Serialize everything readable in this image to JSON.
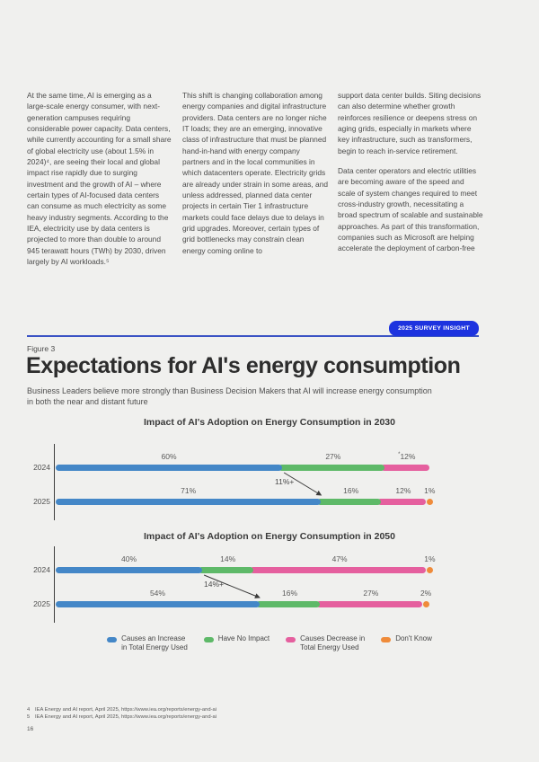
{
  "page": {
    "background": "#f0f0ee",
    "page_number": "16"
  },
  "body_text": {
    "col1": "At the same time, AI is emerging as a large-scale energy consumer, with next-generation campuses requiring considerable power capacity. Data centers, while currently accounting for a small share of global electricity use (about 1.5% in 2024)⁴, are seeing their local and global impact rise rapidly due to surging investment and the growth of AI – where certain types of AI-focused data centers can consume as much electricity as some heavy industry segments. According to the IEA, electricity use by data centers is projected to more than double to around 945 terawatt hours (TWh) by 2030, driven largely by AI workloads.⁵",
    "col2": "This shift is changing collaboration among energy companies and digital infrastructure providers. Data centers are no longer niche IT loads; they are an emerging, innovative class of infrastructure that must be planned hand-in-hand with energy company partners and in the local communities in which datacenters operate. Electricity grids are already under strain in some areas, and unless addressed, planned data center projects in certain Tier 1 infrastructure markets could face delays due to delays in grid upgrades. Moreover, certain types of grid bottlenecks may constrain clean energy coming online to",
    "col3_p1": "support data center builds. Siting decisions can also determine whether growth reinforces resilience or deepens stress on aging grids, especially in markets where key infrastructure, such as transformers, begin to reach in-service retirement.",
    "col3_p2": "Data center operators and electric utilities are becoming aware of the speed and scale of system changes required to meet cross-industry growth, necessitating a broad spectrum of scalable and sustainable approaches. As part of this transformation, companies such as Microsoft are helping accelerate the deployment of carbon-free"
  },
  "figure": {
    "badge": "2025 SURVEY INSIGHT",
    "badge_color": "#1d33df",
    "rule_color": "#3b53c4",
    "label": "Figure 3",
    "title": "Expectations for AI's energy consumption",
    "subtitle": "Business Leaders believe more strongly than Business Decision Makers that AI will increase energy consumption\nin both the near and distant future"
  },
  "chart_data": [
    {
      "type": "bar",
      "orientation": "horizontal-stacked",
      "title": "Impact of AI's Adoption on Energy Consumption in 2030",
      "categories": [
        "2024",
        "2025"
      ],
      "series": [
        {
          "name": "Causes an Increase in Total Energy Used",
          "color": "#4487c7",
          "values": [
            60,
            71
          ]
        },
        {
          "name": "Have No Impact",
          "color": "#5eb968",
          "values": [
            27,
            16
          ]
        },
        {
          "name": "Causes Decrease in Total Energy Used",
          "color": "#e55f9e",
          "values": [
            12,
            12
          ]
        },
        {
          "name": "Don't Know",
          "color": "#ef8b3a",
          "values": [
            null,
            1
          ]
        }
      ],
      "labels": [
        [
          "60%",
          "27%",
          "*12%",
          null
        ],
        [
          "71%",
          "16%",
          "12%",
          "1%"
        ]
      ],
      "annotation": {
        "label": "11%+"
      },
      "xlim": [
        0,
        100
      ],
      "grid": false
    },
    {
      "type": "bar",
      "orientation": "horizontal-stacked",
      "title": "Impact of AI's Adoption on Energy Consumption in 2050",
      "categories": [
        "2024",
        "2025"
      ],
      "series": [
        {
          "name": "Causes an Increase in Total Energy Used",
          "color": "#4487c7",
          "values": [
            40,
            54
          ]
        },
        {
          "name": "Have No Impact",
          "color": "#5eb968",
          "values": [
            14,
            16
          ]
        },
        {
          "name": "Causes Decrease in Total Energy Used",
          "color": "#e55f9e",
          "values": [
            47,
            27
          ]
        },
        {
          "name": "Don't Know",
          "color": "#ef8b3a",
          "values": [
            1,
            2
          ]
        }
      ],
      "labels": [
        [
          "40%",
          "14%",
          "47%",
          "1%"
        ],
        [
          "54%",
          "16%",
          "27%",
          "2%"
        ]
      ],
      "annotation": {
        "label": "14%+"
      },
      "xlim": [
        0,
        100
      ],
      "grid": false
    }
  ],
  "legend": [
    {
      "label": "Causes an Increase\nin Total Energy Used",
      "color": "#4487c7"
    },
    {
      "label": "Have No Impact",
      "color": "#5eb968"
    },
    {
      "label": "Causes Decrease in\nTotal Energy Used",
      "color": "#e55f9e"
    },
    {
      "label": "Don't Know",
      "color": "#ef8b3a"
    }
  ],
  "footnotes": [
    {
      "num": "4",
      "text": "IEA Energy and AI report, April 2025, https://www.iea.org/reports/energy-and-ai"
    },
    {
      "num": "5",
      "text": "IEA Energy and AI report, April 2025, https://www.iea.org/reports/energy-and-ai"
    }
  ]
}
